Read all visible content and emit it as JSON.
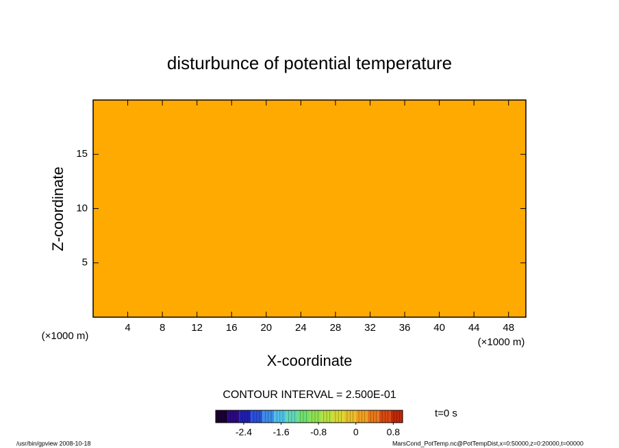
{
  "chart_data": {
    "type": "contour",
    "title": "disturbunce of potential temperature",
    "xlabel": "X-coordinate",
    "ylabel": "Z-coordinate",
    "x_unit": "(×1000 m)",
    "y_unit": "(×1000 m)",
    "xlim": [
      0,
      50
    ],
    "xticks": [
      4,
      8,
      12,
      16,
      20,
      24,
      28,
      32,
      36,
      40,
      44,
      48
    ],
    "ylim": [
      0,
      20
    ],
    "yticks": [
      5,
      10,
      15
    ],
    "fill_color": "#ffaa00",
    "contour_interval_text": "CONTOUR INTERVAL = 2.500E-01",
    "time_text": "t=0 s",
    "colorbar": {
      "lim": [
        -3,
        1
      ],
      "ticks": [
        -2.4,
        -1.6,
        -0.8,
        0,
        0.8
      ],
      "levels": [
        -3,
        -2.75,
        -2.5,
        -2.25,
        -2,
        -1.75,
        -1.5,
        -1.25,
        -1,
        -0.75,
        -0.5,
        -0.25,
        0,
        0.25,
        0.5,
        0.75,
        1
      ],
      "colors": [
        "#1a0033",
        "#2a0a80",
        "#1f1fb0",
        "#2850d8",
        "#3c8ce8",
        "#50c0e8",
        "#60d8b8",
        "#70e070",
        "#90e050",
        "#b8e040",
        "#d8d830",
        "#e8c028",
        "#f0a020",
        "#e87818",
        "#d84810",
        "#c02808"
      ]
    },
    "footer_left": "/usr/bin/gpview   2008-10-18",
    "footer_right": "MarsCond_PotTemp.nc@PotTempDist,x=0:50000,z=0:20000,t=00000"
  }
}
